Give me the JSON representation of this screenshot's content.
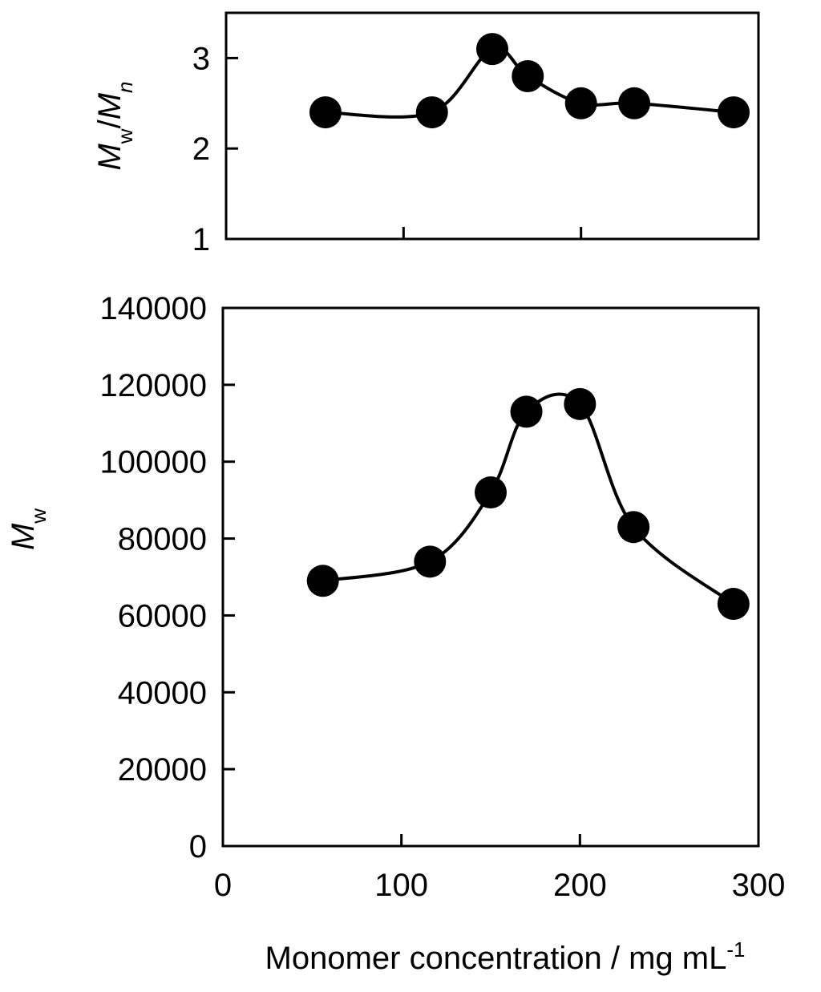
{
  "chart_data": [
    {
      "type": "scatter",
      "smooth_line": true,
      "ylabel": [
        "M",
        "w",
        "/",
        "M",
        "n"
      ],
      "x": [
        56,
        116,
        150,
        170,
        200,
        230,
        286
      ],
      "values": [
        2.4,
        2.4,
        3.1,
        2.8,
        2.5,
        2.5,
        2.4
      ],
      "color": "#000000",
      "xlim": [
        0,
        300
      ],
      "xticks": [
        100,
        200
      ],
      "xtick_labels": false,
      "ylim": [
        1,
        3.5
      ],
      "yticks": [
        1,
        2,
        3
      ]
    },
    {
      "type": "scatter",
      "smooth_line": true,
      "ylabel": [
        "M",
        "w"
      ],
      "xlabel": [
        "Monomer concentration / mg mL",
        "-1"
      ],
      "x": [
        56,
        116,
        150,
        170,
        200,
        230,
        286
      ],
      "values": [
        69000,
        74000,
        92000,
        113000,
        115000,
        83000,
        63000
      ],
      "color": "#000000",
      "xlim": [
        0,
        300
      ],
      "xticks": [
        0,
        100,
        200,
        300
      ],
      "xtick_labels": true,
      "ylim": [
        0,
        140000
      ],
      "yticks": [
        0,
        20000,
        40000,
        60000,
        80000,
        100000,
        120000,
        140000
      ]
    }
  ]
}
